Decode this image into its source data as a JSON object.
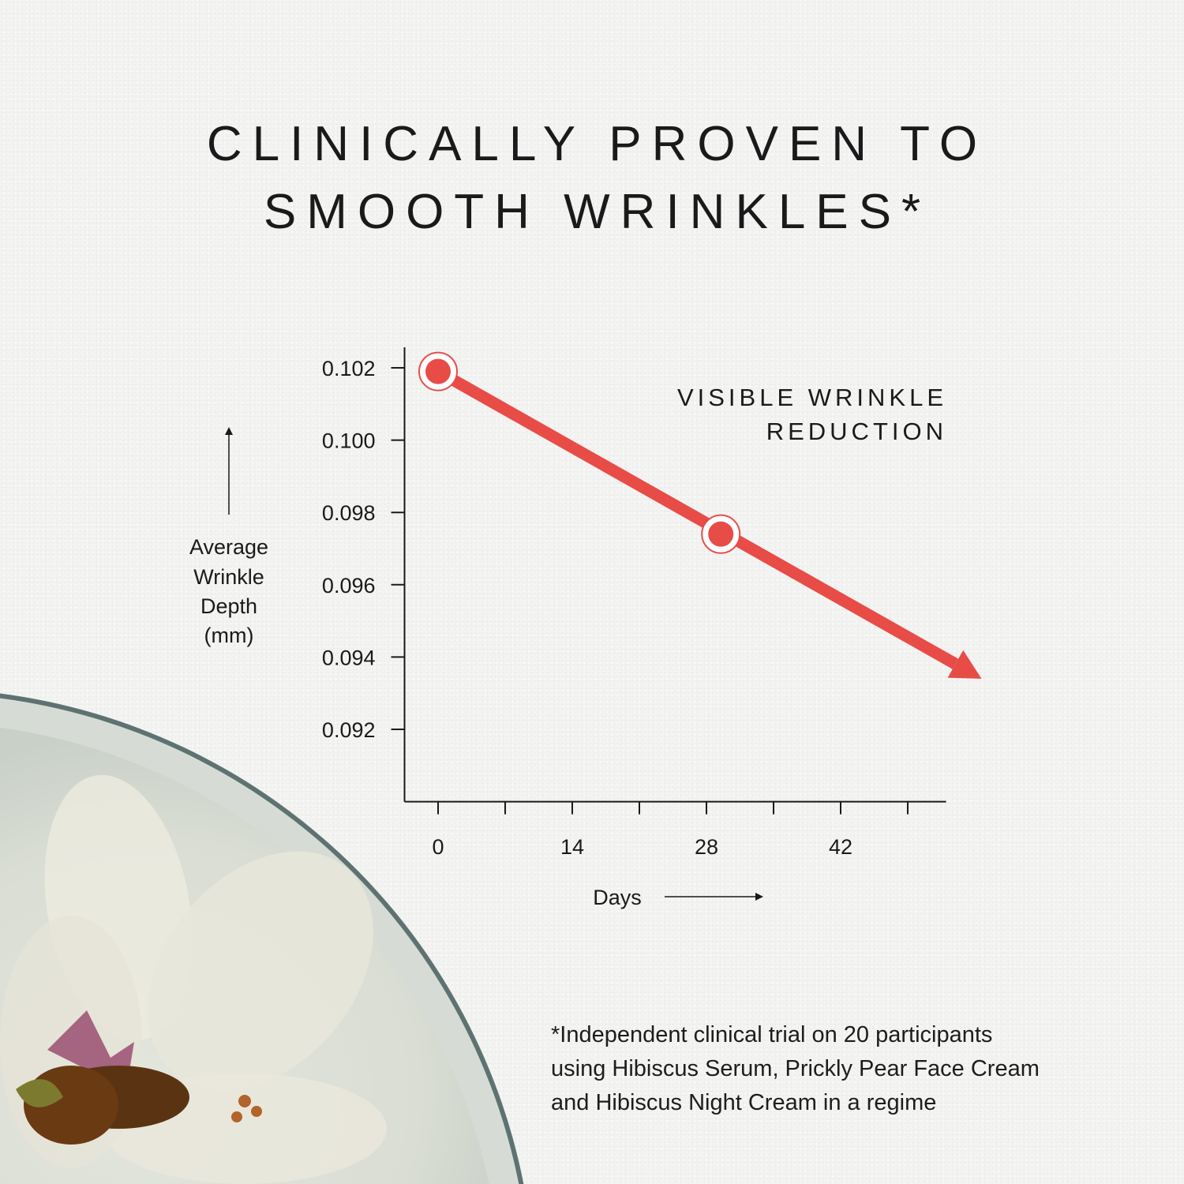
{
  "title": {
    "line1": "CLINICALLY PROVEN TO",
    "line2": "SMOOTH WRINKLES*"
  },
  "footnote": {
    "line1": "*Independent clinical trial on 20 participants",
    "line2": "using Hibiscus Serum, Prickly Pear Face Cream",
    "line3": "and Hibiscus Night Cream in a regime"
  },
  "colors": {
    "line": "#e84c47",
    "text": "#1a1a1a"
  },
  "chart_data": {
    "type": "line",
    "annotation": [
      "VISIBLE WRINKLE",
      "REDUCTION"
    ],
    "ylabel": [
      "Average",
      "Wrinkle",
      "Depth",
      "(mm)"
    ],
    "xlabel": "Days",
    "yticks": [
      "0.102",
      "0.100",
      "0.098",
      "0.096",
      "0.094",
      "0.092"
    ],
    "ytick_values": [
      0.102,
      0.1,
      0.098,
      0.096,
      0.094,
      0.092
    ],
    "xticks": [
      "0",
      "14",
      "28",
      "42"
    ],
    "xtick_values": [
      0,
      14,
      28,
      42
    ],
    "minor_xtick_values": [
      7,
      21,
      35,
      49
    ],
    "ylim": [
      0.09,
      0.1025
    ],
    "xlim": [
      -3.5,
      53
    ],
    "series": [
      {
        "points": [
          {
            "x": 0,
            "y": 0.1019
          },
          {
            "x": 29.5,
            "y": 0.0974
          }
        ],
        "arrow_end": {
          "x": 56.7,
          "y": 0.0934
        }
      }
    ],
    "grid": false
  }
}
